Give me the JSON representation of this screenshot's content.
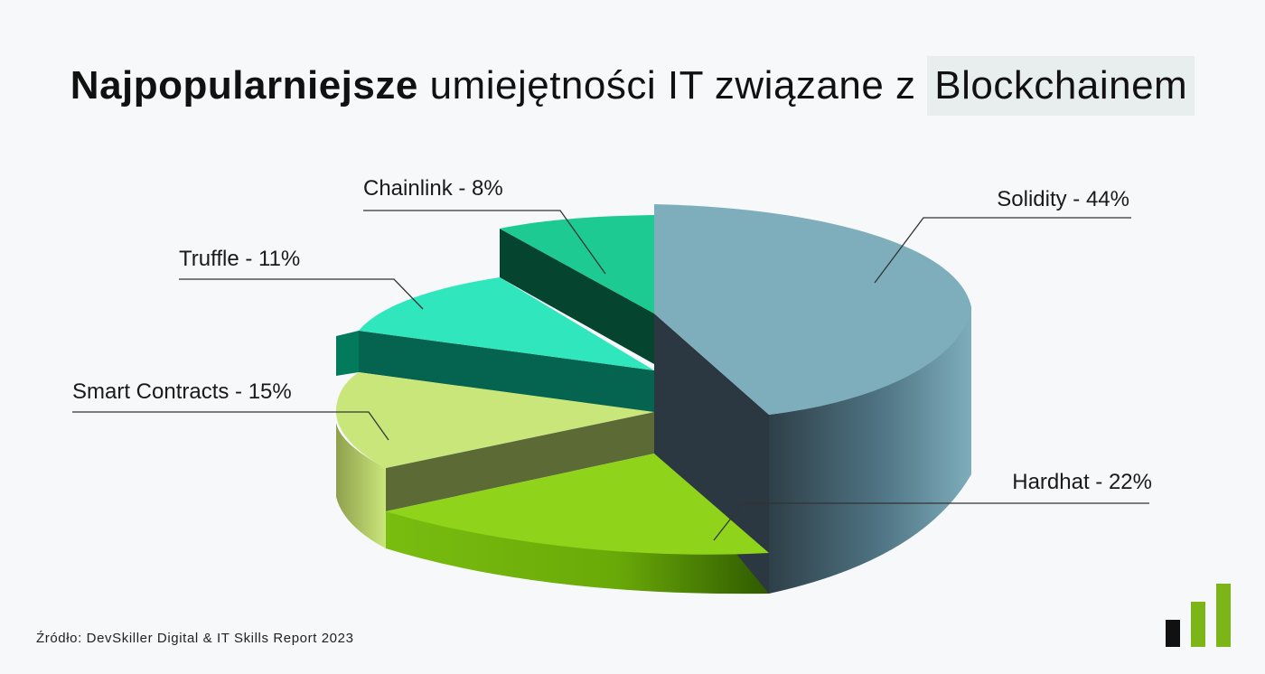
{
  "title": {
    "bold": "Najpopularniejsze",
    "normal": "umiejętności IT związane z",
    "highlight": "Blockchainem"
  },
  "source": "Źródło: DevSkiller Digital & IT Skills Report 2023",
  "colors": {
    "solidity": "#7eadbc",
    "hardhat": "#8fd31a",
    "smart_contracts": "#c9e67a",
    "truffle": "#30e6bd",
    "chainlink": "#1dcb92",
    "logo_black": "#111111",
    "logo_green": "#7cb518"
  },
  "chart_data": {
    "type": "pie",
    "slices": [
      {
        "label": "Solidity - 44%",
        "value": 44,
        "color": "#7eadbc"
      },
      {
        "label": "Hardhat - 22%",
        "value": 22,
        "color": "#8fd31a"
      },
      {
        "label": "Smart Contracts - 15%",
        "value": 15,
        "color": "#c9e67a"
      },
      {
        "label": "Truffle - 11%",
        "value": 11,
        "color": "#30e6bd"
      },
      {
        "label": "Chainlink - 8%",
        "value": 8,
        "color": "#1dcb92"
      }
    ]
  }
}
